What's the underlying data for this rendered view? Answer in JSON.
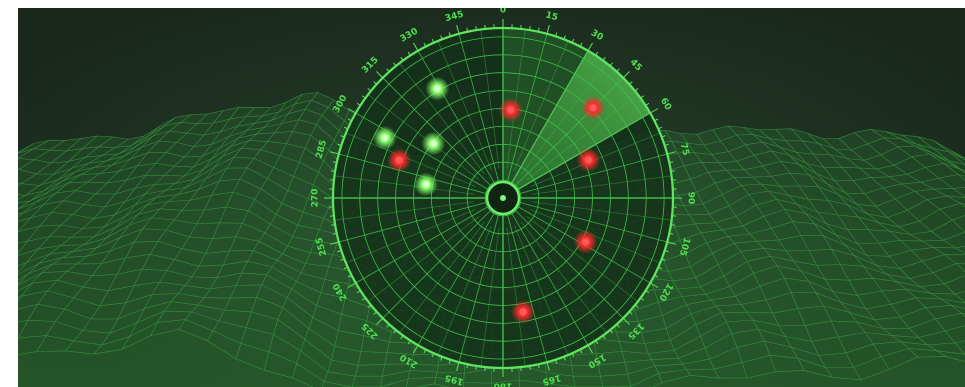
{
  "radar": {
    "bearing_labels": [
      "0",
      "15",
      "30",
      "45",
      "60",
      "75",
      "90",
      "105",
      "120",
      "135",
      "150",
      "165",
      "180",
      "195",
      "210",
      "225",
      "240",
      "255",
      "270",
      "285",
      "300",
      "315",
      "330",
      "345"
    ],
    "sweep_from_deg": 30,
    "sweep_to_deg": 60,
    "colors": {
      "background": "#1d2c1f",
      "grid": "#3fbf4a",
      "accent": "#66ff66",
      "hostile": "#ff2b2b",
      "friendly": "#9cff7a"
    },
    "contacts": [
      {
        "kind": "hostile",
        "bearing_deg": 45,
        "range": 0.75
      },
      {
        "kind": "hostile",
        "bearing_deg": 5,
        "range": 0.52
      },
      {
        "kind": "hostile",
        "bearing_deg": 66,
        "range": 0.55
      },
      {
        "kind": "hostile",
        "bearing_deg": 118,
        "range": 0.55
      },
      {
        "kind": "hostile",
        "bearing_deg": 170,
        "range": 0.68
      },
      {
        "kind": "hostile",
        "bearing_deg": 290,
        "range": 0.65
      },
      {
        "kind": "friendly",
        "bearing_deg": 329,
        "range": 0.75
      },
      {
        "kind": "friendly",
        "bearing_deg": 297,
        "range": 0.78
      },
      {
        "kind": "friendly",
        "bearing_deg": 308,
        "range": 0.52
      },
      {
        "kind": "friendly",
        "bearing_deg": 280,
        "range": 0.46
      }
    ]
  }
}
